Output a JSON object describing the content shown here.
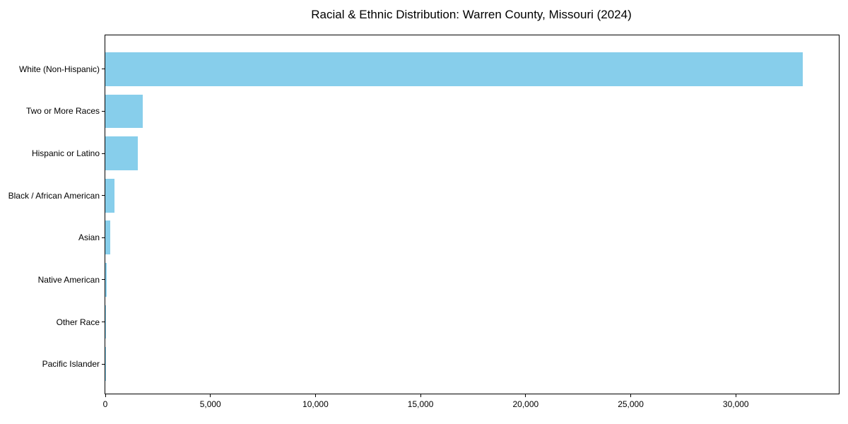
{
  "chart_data": {
    "type": "bar",
    "orientation": "horizontal",
    "title": "Racial & Ethnic Distribution: Warren County, Missouri (2024)",
    "categories": [
      "White (Non-Hispanic)",
      "Two or More Races",
      "Hispanic or Latino",
      "Black / African American",
      "Asian",
      "Native American",
      "Other Race",
      "Pacific Islander"
    ],
    "values": [
      33200,
      1780,
      1550,
      440,
      230,
      60,
      25,
      10
    ],
    "xlabel": "",
    "ylabel": "",
    "xlim": [
      0,
      34900
    ],
    "xticks": [
      0,
      5000,
      10000,
      15000,
      20000,
      25000,
      30000
    ],
    "xtick_labels": [
      "0",
      "5,000",
      "10,000",
      "15,000",
      "20,000",
      "25,000",
      "30,000"
    ],
    "bar_color": "#87CEEB",
    "axis_color": "#000000",
    "background_color": "#FFFFFF",
    "grid": false,
    "legend": null,
    "bar_height_fraction": 0.8
  }
}
